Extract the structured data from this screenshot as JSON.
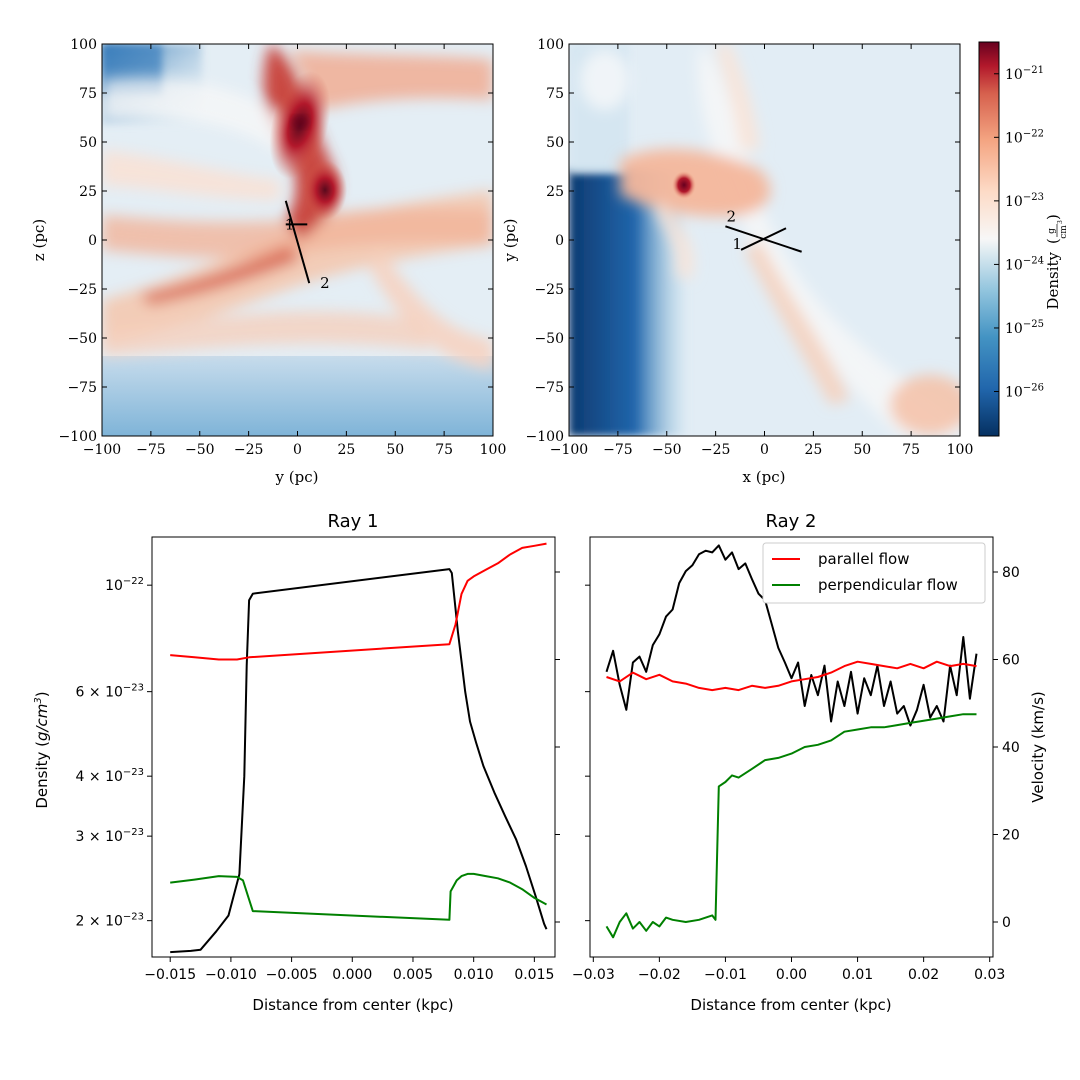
{
  "colors": {
    "density": "#000000",
    "parallel": "#ff0000",
    "perpendicular": "#008000",
    "cmap_low": "#053061",
    "cmap_mid": "#f7f7f7",
    "cmap_high": "#67001f"
  },
  "chart_data": [
    {
      "type": "heatmap",
      "id": "projection-left",
      "title": "",
      "xlabel": "y (pc)",
      "ylabel": "z (pc)",
      "xlim": [
        -100,
        100
      ],
      "ylim": [
        -100,
        100
      ],
      "xticks": [
        "−100",
        "−75",
        "−50",
        "−25",
        "0",
        "25",
        "50",
        "75",
        "100"
      ],
      "yticks": [
        "−100",
        "−75",
        "−50",
        "−25",
        "0",
        "25",
        "50",
        "75",
        "100"
      ],
      "ray_markers": [
        {
          "label": "1",
          "x": -4,
          "y": 8
        },
        {
          "label": "2",
          "x": 14,
          "y": -22
        }
      ],
      "ray_segments": [
        {
          "from": [
            -6,
            20
          ],
          "to": [
            6,
            -22
          ]
        },
        {
          "from": [
            -6,
            8
          ],
          "to": [
            5,
            8
          ]
        }
      ]
    },
    {
      "type": "heatmap",
      "id": "projection-right",
      "title": "",
      "xlabel": "x (pc)",
      "ylabel": "y (pc)",
      "xlim": [
        -100,
        100
      ],
      "ylim": [
        -100,
        100
      ],
      "xticks": [
        "−100",
        "−75",
        "−50",
        "−25",
        "0",
        "25",
        "50",
        "75",
        "100"
      ],
      "yticks": [
        "−100",
        "−75",
        "−50",
        "−25",
        "0",
        "25",
        "50",
        "75",
        "100"
      ],
      "ray_markers": [
        {
          "label": "2",
          "x": -17,
          "y": 12
        },
        {
          "label": "1",
          "x": -14,
          "y": -2
        }
      ],
      "ray_segments": [
        {
          "from": [
            -20,
            7
          ],
          "to": [
            19,
            -6
          ]
        },
        {
          "from": [
            -12,
            -5
          ],
          "to": [
            11,
            6
          ]
        }
      ],
      "colorbar": {
        "label": "Density (g/cm³)",
        "label_prefix": "Density",
        "unit_num": "g",
        "unit_den": "cm",
        "unit_den_exp": "3",
        "log_range": [
          -26.7,
          -20.5
        ],
        "ticks": [
          {
            "base": "10",
            "exp": "−21",
            "value": -21
          },
          {
            "base": "10",
            "exp": "−22",
            "value": -22
          },
          {
            "base": "10",
            "exp": "−23",
            "value": -23
          },
          {
            "base": "10",
            "exp": "−24",
            "value": -24
          },
          {
            "base": "10",
            "exp": "−25",
            "value": -25
          },
          {
            "base": "10",
            "exp": "−26",
            "value": -26
          }
        ]
      }
    },
    {
      "type": "line",
      "id": "ray-1",
      "title": "Ray 1",
      "xlabel": "Distance from center (kpc)",
      "ylabel": "Density (g/cm³)",
      "ylabel_parts": [
        "Density (",
        "g/cm",
        "3",
        ")"
      ],
      "xlim": [
        -0.0165,
        0.0167
      ],
      "ylim_log": [
        1.68e-23,
        1.26e-22
      ],
      "y2lim": [
        -8,
        88
      ],
      "xticks": [
        "−0.015",
        "−0.010",
        "−0.005",
        "0.000",
        "0.005",
        "0.010",
        "0.015"
      ],
      "xtick_values": [
        -0.015,
        -0.01,
        -0.005,
        0.0,
        0.005,
        0.01,
        0.015
      ],
      "yticks": [
        {
          "mant": "10",
          "exp": "−22",
          "value": 1e-22,
          "plain": true
        },
        {
          "mant": "6 × 10",
          "exp": "−23",
          "value": 6e-23
        },
        {
          "mant": "4 × 10",
          "exp": "−23",
          "value": 4e-23
        },
        {
          "mant": "3 × 10",
          "exp": "−23",
          "value": 3e-23
        },
        {
          "mant": "2 × 10",
          "exp": "−23",
          "value": 2e-23
        }
      ],
      "series": [
        {
          "name": "density",
          "axis": "left",
          "color": "#000000",
          "x": [
            -0.015,
            -0.0133,
            -0.0125,
            -0.0112,
            -0.0102,
            -0.0093,
            -0.0089,
            -0.0087,
            -0.0085,
            -0.0082,
            0.008,
            0.0082,
            0.0087,
            0.0093,
            0.0097,
            0.0102,
            0.0108,
            0.0117,
            0.0126,
            0.0135,
            0.0143,
            0.0151,
            0.0158,
            0.016
          ],
          "y": [
            1.72e-23,
            1.73e-23,
            1.74e-23,
            1.9e-23,
            2.05e-23,
            2.5e-23,
            4e-23,
            6.8e-23,
            9.3e-23,
            9.6e-23,
            1.08e-22,
            1.06e-22,
            8e-23,
            6e-23,
            5.2e-23,
            4.7e-23,
            4.2e-23,
            3.7e-23,
            3.3e-23,
            2.95e-23,
            2.6e-23,
            2.25e-23,
            1.97e-23,
            1.92e-23
          ]
        },
        {
          "name": "parallel flow",
          "axis": "right",
          "color": "#ff0000",
          "x": [
            -0.015,
            -0.013,
            -0.011,
            -0.0095,
            -0.0085,
            0.008,
            0.0085,
            0.009,
            0.0095,
            0.01,
            0.011,
            0.012,
            0.013,
            0.014,
            0.015,
            0.016
          ],
          "y": [
            61,
            60.5,
            60,
            60,
            60.5,
            63.5,
            68,
            75,
            78,
            79,
            80.5,
            82,
            84,
            85.5,
            86,
            86.5
          ]
        },
        {
          "name": "perpendicular flow",
          "axis": "right",
          "color": "#008000",
          "x": [
            -0.015,
            -0.013,
            -0.011,
            -0.0095,
            -0.009,
            -0.0086,
            -0.0082,
            0.008,
            0.0081,
            0.0086,
            0.009,
            0.0095,
            0.01,
            0.011,
            0.012,
            0.013,
            0.014,
            0.015,
            0.016
          ],
          "y": [
            9,
            9.7,
            10.5,
            10.3,
            9.5,
            6,
            2.5,
            0.5,
            7,
            9.5,
            10.5,
            11,
            11,
            10.5,
            10,
            9,
            7.5,
            5.5,
            4
          ]
        }
      ]
    },
    {
      "type": "line",
      "id": "ray-2",
      "title": "Ray 2",
      "xlabel": "Distance from center (kpc)",
      "ylabel": "Velocity (km/s)",
      "xlim": [
        -0.0305,
        0.0305
      ],
      "ylim_log": [
        1.68e-23,
        1.26e-22
      ],
      "y2lim": [
        -8,
        88
      ],
      "xticks": [
        "−0.03",
        "−0.02",
        "−0.01",
        "0.00",
        "0.01",
        "0.02",
        "0.03"
      ],
      "xtick_values": [
        -0.03,
        -0.02,
        -0.01,
        0.0,
        0.01,
        0.02,
        0.03
      ],
      "yticks_right": [
        "0",
        "20",
        "40",
        "60",
        "80"
      ],
      "ytick_values_right": [
        0,
        20,
        40,
        60,
        80
      ],
      "legend": {
        "position": "top-right",
        "entries": [
          "parallel flow",
          "perpendicular flow"
        ]
      },
      "series": [
        {
          "name": "density",
          "axis": "left",
          "color": "#000000",
          "x": [
            -0.028,
            -0.027,
            -0.026,
            -0.025,
            -0.024,
            -0.023,
            -0.022,
            -0.021,
            -0.02,
            -0.019,
            -0.018,
            -0.017,
            -0.016,
            -0.015,
            -0.014,
            -0.013,
            -0.012,
            -0.011,
            -0.01,
            -0.009,
            -0.008,
            -0.007,
            -0.006,
            -0.005,
            -0.004,
            -0.003,
            -0.002,
            -0.001,
            0.0,
            0.001,
            0.002,
            0.003,
            0.004,
            0.005,
            0.006,
            0.007,
            0.008,
            0.009,
            0.01,
            0.011,
            0.012,
            0.013,
            0.014,
            0.015,
            0.016,
            0.017,
            0.018,
            0.019,
            0.02,
            0.021,
            0.022,
            0.023,
            0.024,
            0.025,
            0.026,
            0.027,
            0.028
          ],
          "y": [
            6.6e-23,
            7.3e-23,
            6.2e-23,
            5.5e-23,
            6.9e-23,
            7.1e-23,
            6.6e-23,
            7.5e-23,
            7.9e-23,
            8.6e-23,
            8.9e-23,
            1.01e-22,
            1.07e-22,
            1.1e-22,
            1.16e-22,
            1.18e-22,
            1.17e-22,
            1.21e-22,
            1.13e-22,
            1.17e-22,
            1.08e-22,
            1.11e-22,
            1.03e-22,
            9.6e-23,
            9.3e-23,
            8.3e-23,
            7.4e-23,
            6.9e-23,
            6.4e-23,
            6.9e-23,
            5.6e-23,
            6.5e-23,
            5.9e-23,
            6.8e-23,
            5.2e-23,
            6.3e-23,
            5.6e-23,
            6.6e-23,
            5.4e-23,
            6.4e-23,
            5.9e-23,
            6.8e-23,
            5.6e-23,
            6.3e-23,
            5.4e-23,
            5.6e-23,
            5.1e-23,
            5.5e-23,
            6.2e-23,
            5.3e-23,
            5.6e-23,
            5.2e-23,
            6.8e-23,
            5.9e-23,
            7.8e-23,
            5.8e-23,
            7.2e-23
          ]
        },
        {
          "name": "parallel flow",
          "axis": "right",
          "color": "#ff0000",
          "x": [
            -0.028,
            -0.026,
            -0.024,
            -0.022,
            -0.02,
            -0.018,
            -0.016,
            -0.014,
            -0.012,
            -0.01,
            -0.008,
            -0.006,
            -0.004,
            -0.002,
            0.0,
            0.002,
            0.004,
            0.006,
            0.008,
            0.01,
            0.012,
            0.014,
            0.016,
            0.018,
            0.02,
            0.022,
            0.024,
            0.026,
            0.028
          ],
          "y": [
            56,
            55,
            57,
            55.5,
            56.5,
            55,
            54.5,
            53.5,
            53,
            53.5,
            53,
            54,
            53.5,
            54,
            55,
            55.5,
            56,
            57,
            58.5,
            59.5,
            59,
            58.5,
            58,
            59,
            58,
            59.5,
            58.5,
            59,
            58.5
          ]
        },
        {
          "name": "perpendicular flow",
          "axis": "right",
          "color": "#008000",
          "x": [
            -0.028,
            -0.027,
            -0.026,
            -0.025,
            -0.024,
            -0.023,
            -0.022,
            -0.021,
            -0.02,
            -0.019,
            -0.018,
            -0.016,
            -0.014,
            -0.012,
            -0.0115,
            -0.011,
            -0.01,
            -0.009,
            -0.008,
            -0.006,
            -0.004,
            -0.002,
            0.0,
            0.002,
            0.004,
            0.006,
            0.008,
            0.01,
            0.012,
            0.014,
            0.016,
            0.018,
            0.02,
            0.022,
            0.024,
            0.026,
            0.028
          ],
          "y": [
            -1,
            -3.5,
            0,
            2,
            -1.5,
            0,
            -2,
            0,
            -1,
            1,
            0.5,
            0,
            0.5,
            1.5,
            0.5,
            31,
            32,
            33.5,
            33,
            35,
            37,
            37.5,
            38.5,
            40,
            40.5,
            41.5,
            43.5,
            44,
            44.5,
            44.5,
            45,
            45.5,
            46,
            46.5,
            47,
            47.5,
            47.5
          ]
        }
      ]
    }
  ]
}
